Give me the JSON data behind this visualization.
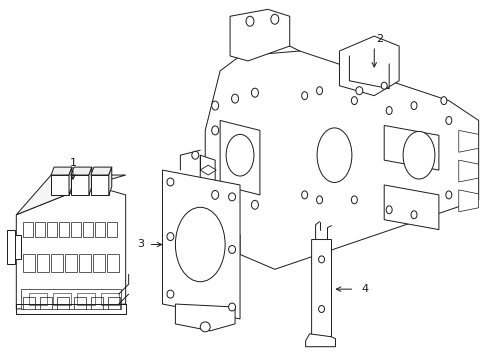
{
  "background_color": "#ffffff",
  "line_color": "#1a1a1a",
  "line_width": 0.7,
  "figsize": [
    4.89,
    3.6
  ],
  "dpi": 100
}
